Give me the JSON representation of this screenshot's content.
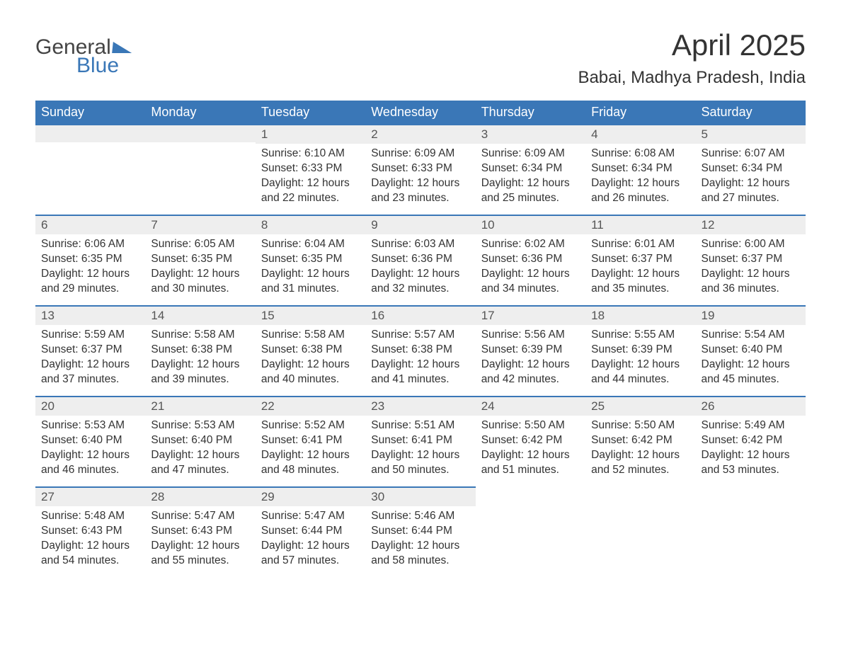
{
  "logo": {
    "word1": "General",
    "word2": "Blue"
  },
  "title": "April 2025",
  "location": "Babai, Madhya Pradesh, India",
  "colors": {
    "header_bg": "#3a77b7",
    "header_text": "#ffffff",
    "daynum_bg": "#eeeeee",
    "daynum_border": "#3a77b7",
    "body_text": "#333333",
    "page_bg": "#ffffff"
  },
  "fonts": {
    "title_size_pt": 32,
    "location_size_pt": 18,
    "header_size_pt": 14,
    "body_size_pt": 12
  },
  "columns": [
    "Sunday",
    "Monday",
    "Tuesday",
    "Wednesday",
    "Thursday",
    "Friday",
    "Saturday"
  ],
  "labels": {
    "sunrise": "Sunrise:",
    "sunset": "Sunset:",
    "daylight": "Daylight:"
  },
  "weeks": [
    [
      null,
      null,
      {
        "d": "1",
        "sunrise": "6:10 AM",
        "sunset": "6:33 PM",
        "daylight": "12 hours and 22 minutes."
      },
      {
        "d": "2",
        "sunrise": "6:09 AM",
        "sunset": "6:33 PM",
        "daylight": "12 hours and 23 minutes."
      },
      {
        "d": "3",
        "sunrise": "6:09 AM",
        "sunset": "6:34 PM",
        "daylight": "12 hours and 25 minutes."
      },
      {
        "d": "4",
        "sunrise": "6:08 AM",
        "sunset": "6:34 PM",
        "daylight": "12 hours and 26 minutes."
      },
      {
        "d": "5",
        "sunrise": "6:07 AM",
        "sunset": "6:34 PM",
        "daylight": "12 hours and 27 minutes."
      }
    ],
    [
      {
        "d": "6",
        "sunrise": "6:06 AM",
        "sunset": "6:35 PM",
        "daylight": "12 hours and 29 minutes."
      },
      {
        "d": "7",
        "sunrise": "6:05 AM",
        "sunset": "6:35 PM",
        "daylight": "12 hours and 30 minutes."
      },
      {
        "d": "8",
        "sunrise": "6:04 AM",
        "sunset": "6:35 PM",
        "daylight": "12 hours and 31 minutes."
      },
      {
        "d": "9",
        "sunrise": "6:03 AM",
        "sunset": "6:36 PM",
        "daylight": "12 hours and 32 minutes."
      },
      {
        "d": "10",
        "sunrise": "6:02 AM",
        "sunset": "6:36 PM",
        "daylight": "12 hours and 34 minutes."
      },
      {
        "d": "11",
        "sunrise": "6:01 AM",
        "sunset": "6:37 PM",
        "daylight": "12 hours and 35 minutes."
      },
      {
        "d": "12",
        "sunrise": "6:00 AM",
        "sunset": "6:37 PM",
        "daylight": "12 hours and 36 minutes."
      }
    ],
    [
      {
        "d": "13",
        "sunrise": "5:59 AM",
        "sunset": "6:37 PM",
        "daylight": "12 hours and 37 minutes."
      },
      {
        "d": "14",
        "sunrise": "5:58 AM",
        "sunset": "6:38 PM",
        "daylight": "12 hours and 39 minutes."
      },
      {
        "d": "15",
        "sunrise": "5:58 AM",
        "sunset": "6:38 PM",
        "daylight": "12 hours and 40 minutes."
      },
      {
        "d": "16",
        "sunrise": "5:57 AM",
        "sunset": "6:38 PM",
        "daylight": "12 hours and 41 minutes."
      },
      {
        "d": "17",
        "sunrise": "5:56 AM",
        "sunset": "6:39 PM",
        "daylight": "12 hours and 42 minutes."
      },
      {
        "d": "18",
        "sunrise": "5:55 AM",
        "sunset": "6:39 PM",
        "daylight": "12 hours and 44 minutes."
      },
      {
        "d": "19",
        "sunrise": "5:54 AM",
        "sunset": "6:40 PM",
        "daylight": "12 hours and 45 minutes."
      }
    ],
    [
      {
        "d": "20",
        "sunrise": "5:53 AM",
        "sunset": "6:40 PM",
        "daylight": "12 hours and 46 minutes."
      },
      {
        "d": "21",
        "sunrise": "5:53 AM",
        "sunset": "6:40 PM",
        "daylight": "12 hours and 47 minutes."
      },
      {
        "d": "22",
        "sunrise": "5:52 AM",
        "sunset": "6:41 PM",
        "daylight": "12 hours and 48 minutes."
      },
      {
        "d": "23",
        "sunrise": "5:51 AM",
        "sunset": "6:41 PM",
        "daylight": "12 hours and 50 minutes."
      },
      {
        "d": "24",
        "sunrise": "5:50 AM",
        "sunset": "6:42 PM",
        "daylight": "12 hours and 51 minutes."
      },
      {
        "d": "25",
        "sunrise": "5:50 AM",
        "sunset": "6:42 PM",
        "daylight": "12 hours and 52 minutes."
      },
      {
        "d": "26",
        "sunrise": "5:49 AM",
        "sunset": "6:42 PM",
        "daylight": "12 hours and 53 minutes."
      }
    ],
    [
      {
        "d": "27",
        "sunrise": "5:48 AM",
        "sunset": "6:43 PM",
        "daylight": "12 hours and 54 minutes."
      },
      {
        "d": "28",
        "sunrise": "5:47 AM",
        "sunset": "6:43 PM",
        "daylight": "12 hours and 55 minutes."
      },
      {
        "d": "29",
        "sunrise": "5:47 AM",
        "sunset": "6:44 PM",
        "daylight": "12 hours and 57 minutes."
      },
      {
        "d": "30",
        "sunrise": "5:46 AM",
        "sunset": "6:44 PM",
        "daylight": "12 hours and 58 minutes."
      },
      null,
      null,
      null
    ]
  ]
}
